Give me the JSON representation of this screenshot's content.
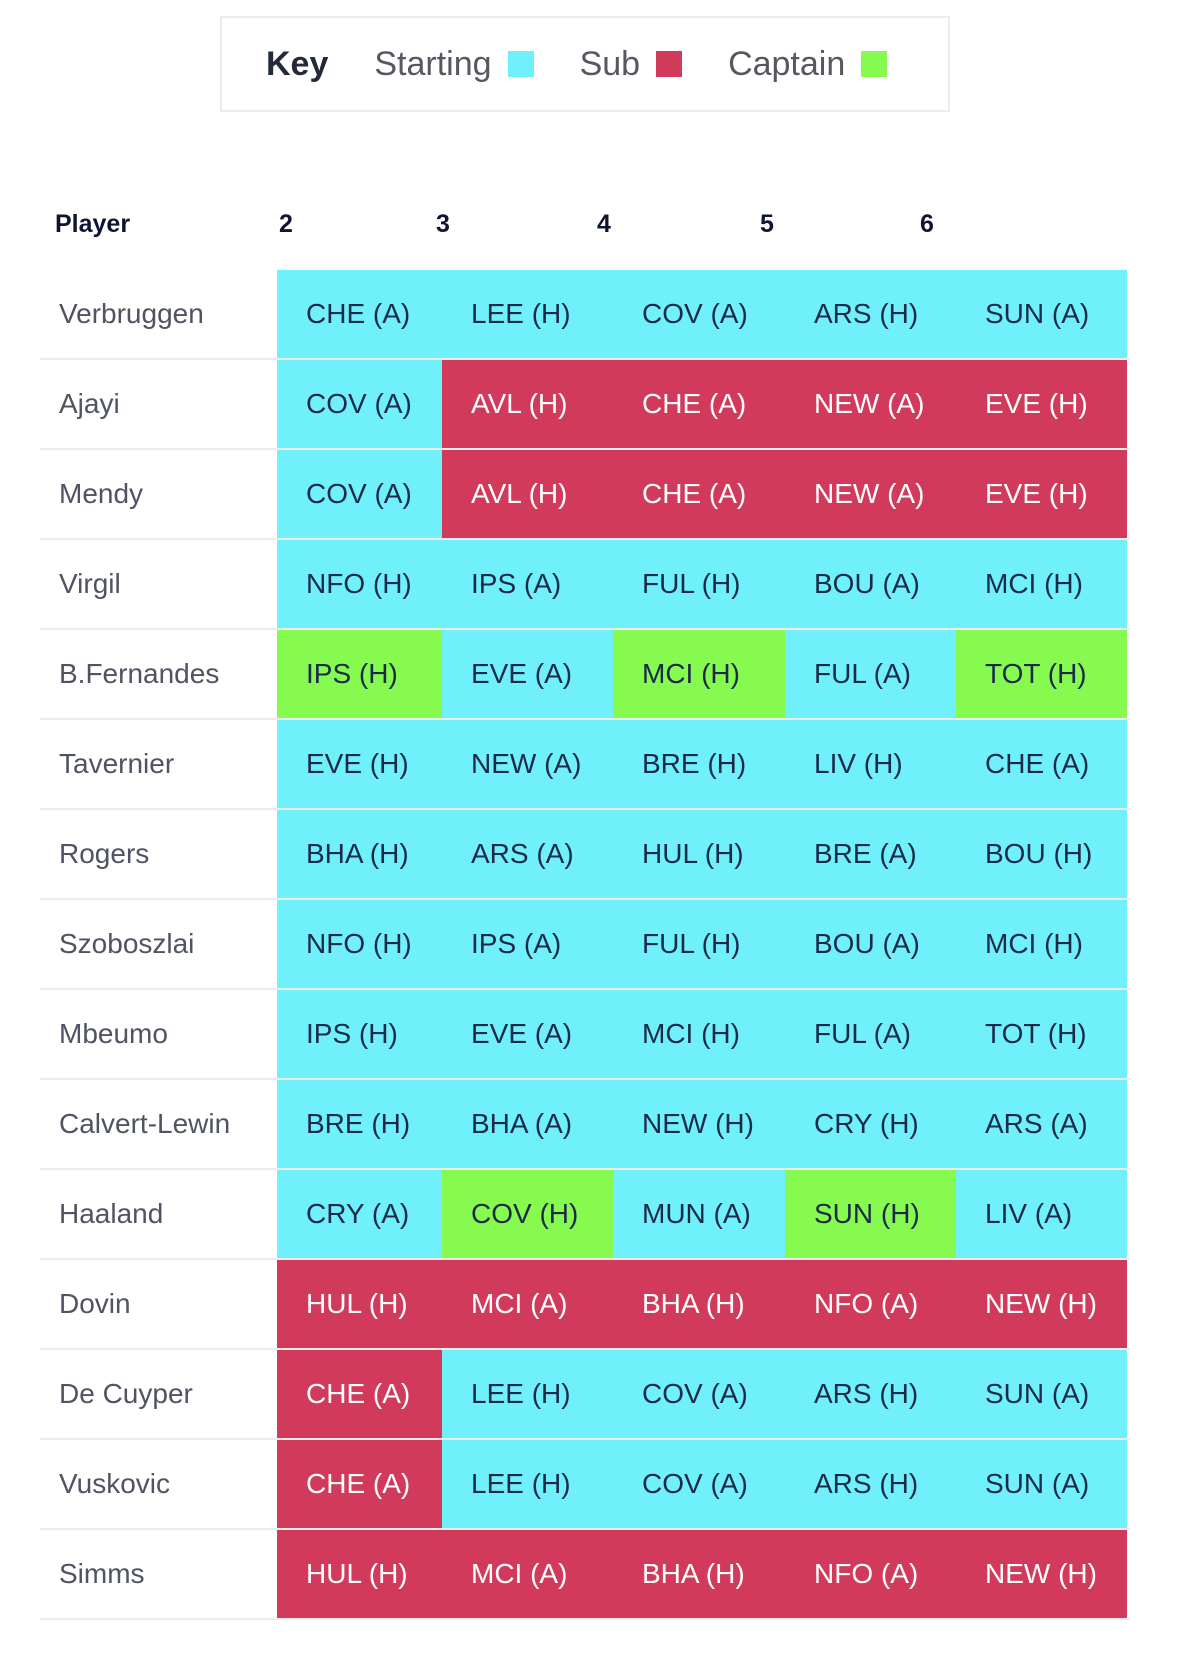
{
  "key": {
    "title": "Key",
    "items": [
      {
        "label": "Starting",
        "color": "#6ff0fa"
      },
      {
        "label": "Sub",
        "color": "#d23a5c"
      },
      {
        "label": "Captain",
        "color": "#86fa4e"
      }
    ]
  },
  "table": {
    "headers": [
      "Player",
      "2",
      "3",
      "4",
      "5",
      "6"
    ],
    "rows": [
      {
        "player": "Verbruggen",
        "fixtures": [
          {
            "text": "CHE (A)",
            "status": "starting"
          },
          {
            "text": "LEE (H)",
            "status": "starting"
          },
          {
            "text": "COV (A)",
            "status": "starting"
          },
          {
            "text": "ARS (H)",
            "status": "starting"
          },
          {
            "text": "SUN (A)",
            "status": "starting"
          }
        ]
      },
      {
        "player": "Ajayi",
        "fixtures": [
          {
            "text": "COV (A)",
            "status": "starting"
          },
          {
            "text": "AVL (H)",
            "status": "sub"
          },
          {
            "text": "CHE (A)",
            "status": "sub"
          },
          {
            "text": "NEW (A)",
            "status": "sub"
          },
          {
            "text": "EVE (H)",
            "status": "sub"
          }
        ]
      },
      {
        "player": "Mendy",
        "fixtures": [
          {
            "text": "COV (A)",
            "status": "starting"
          },
          {
            "text": "AVL (H)",
            "status": "sub"
          },
          {
            "text": "CHE (A)",
            "status": "sub"
          },
          {
            "text": "NEW (A)",
            "status": "sub"
          },
          {
            "text": "EVE (H)",
            "status": "sub"
          }
        ]
      },
      {
        "player": "Virgil",
        "fixtures": [
          {
            "text": "NFO (H)",
            "status": "starting"
          },
          {
            "text": "IPS (A)",
            "status": "starting"
          },
          {
            "text": "FUL (H)",
            "status": "starting"
          },
          {
            "text": "BOU (A)",
            "status": "starting"
          },
          {
            "text": "MCI (H)",
            "status": "starting"
          }
        ]
      },
      {
        "player": "B.Fernandes",
        "fixtures": [
          {
            "text": "IPS (H)",
            "status": "captain"
          },
          {
            "text": "EVE (A)",
            "status": "starting"
          },
          {
            "text": "MCI (H)",
            "status": "captain"
          },
          {
            "text": "FUL (A)",
            "status": "starting"
          },
          {
            "text": "TOT (H)",
            "status": "captain"
          }
        ]
      },
      {
        "player": "Tavernier",
        "fixtures": [
          {
            "text": "EVE (H)",
            "status": "starting"
          },
          {
            "text": "NEW (A)",
            "status": "starting"
          },
          {
            "text": "BRE (H)",
            "status": "starting"
          },
          {
            "text": "LIV (H)",
            "status": "starting"
          },
          {
            "text": "CHE (A)",
            "status": "starting"
          }
        ]
      },
      {
        "player": "Rogers",
        "fixtures": [
          {
            "text": "BHA (H)",
            "status": "starting"
          },
          {
            "text": "ARS (A)",
            "status": "starting"
          },
          {
            "text": "HUL (H)",
            "status": "starting"
          },
          {
            "text": "BRE (A)",
            "status": "starting"
          },
          {
            "text": "BOU (H)",
            "status": "starting"
          }
        ]
      },
      {
        "player": "Szoboszlai",
        "fixtures": [
          {
            "text": "NFO (H)",
            "status": "starting"
          },
          {
            "text": "IPS (A)",
            "status": "starting"
          },
          {
            "text": "FUL (H)",
            "status": "starting"
          },
          {
            "text": "BOU (A)",
            "status": "starting"
          },
          {
            "text": "MCI (H)",
            "status": "starting"
          }
        ]
      },
      {
        "player": "Mbeumo",
        "fixtures": [
          {
            "text": "IPS (H)",
            "status": "starting"
          },
          {
            "text": "EVE (A)",
            "status": "starting"
          },
          {
            "text": "MCI (H)",
            "status": "starting"
          },
          {
            "text": "FUL (A)",
            "status": "starting"
          },
          {
            "text": "TOT (H)",
            "status": "starting"
          }
        ]
      },
      {
        "player": "Calvert-Lewin",
        "fixtures": [
          {
            "text": "BRE (H)",
            "status": "starting"
          },
          {
            "text": "BHA (A)",
            "status": "starting"
          },
          {
            "text": "NEW (H)",
            "status": "starting"
          },
          {
            "text": "CRY (H)",
            "status": "starting"
          },
          {
            "text": "ARS (A)",
            "status": "starting"
          }
        ]
      },
      {
        "player": "Haaland",
        "fixtures": [
          {
            "text": "CRY (A)",
            "status": "starting"
          },
          {
            "text": "COV (H)",
            "status": "captain"
          },
          {
            "text": "MUN (A)",
            "status": "starting"
          },
          {
            "text": "SUN (H)",
            "status": "captain"
          },
          {
            "text": "LIV (A)",
            "status": "starting"
          }
        ]
      },
      {
        "player": "Dovin",
        "fixtures": [
          {
            "text": "HUL (H)",
            "status": "sub"
          },
          {
            "text": "MCI (A)",
            "status": "sub"
          },
          {
            "text": "BHA (H)",
            "status": "sub"
          },
          {
            "text": "NFO (A)",
            "status": "sub"
          },
          {
            "text": "NEW (H)",
            "status": "sub"
          }
        ]
      },
      {
        "player": "De Cuyper",
        "fixtures": [
          {
            "text": "CHE (A)",
            "status": "sub"
          },
          {
            "text": "LEE (H)",
            "status": "starting"
          },
          {
            "text": "COV (A)",
            "status": "starting"
          },
          {
            "text": "ARS (H)",
            "status": "starting"
          },
          {
            "text": "SUN (A)",
            "status": "starting"
          }
        ]
      },
      {
        "player": "Vuskovic",
        "fixtures": [
          {
            "text": "CHE (A)",
            "status": "sub"
          },
          {
            "text": "LEE (H)",
            "status": "starting"
          },
          {
            "text": "COV (A)",
            "status": "starting"
          },
          {
            "text": "ARS (H)",
            "status": "starting"
          },
          {
            "text": "SUN (A)",
            "status": "starting"
          }
        ]
      },
      {
        "player": "Simms",
        "fixtures": [
          {
            "text": "HUL (H)",
            "status": "sub"
          },
          {
            "text": "MCI (A)",
            "status": "sub"
          },
          {
            "text": "BHA (H)",
            "status": "sub"
          },
          {
            "text": "NFO (A)",
            "status": "sub"
          },
          {
            "text": "NEW (H)",
            "status": "sub"
          }
        ]
      }
    ]
  }
}
